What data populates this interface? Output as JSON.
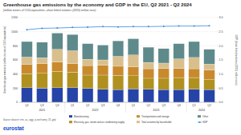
{
  "chart_data": {
    "type": "bar",
    "stacked": true,
    "title": "Greenhouse gas emissions by the economy and GDP in the EU, Q2 2021 - Q2 2024",
    "subtitle": "(million tonnes of CO2-equivalents, chain linked volumes (2015) million euro)",
    "y_label": "Greenhouse gas emissions (million tonnes of CO2-equivalents)",
    "y2_label": "GDP (chain linked volumes (2015) million euro)",
    "categories": [
      "Q2",
      "Q3",
      "Q4",
      "Q1",
      "Q2",
      "Q3",
      "Q4",
      "Q1",
      "Q2",
      "Q3",
      "Q4",
      "Q1",
      "Q2"
    ],
    "category_groups": [
      {
        "label": "2021",
        "count": 3
      },
      {
        "label": "2022",
        "count": 4
      },
      {
        "label": "2023",
        "count": 4
      },
      {
        "label": "2024",
        "count": 2
      }
    ],
    "series": [
      {
        "name": "Manufacturing",
        "color": "#2644A7",
        "type": "bar",
        "values": [
          205,
          200,
          205,
          205,
          195,
          185,
          180,
          190,
          185,
          180,
          180,
          185,
          180
        ]
      },
      {
        "name": "Electricity, gas, steam and air conditioning supply",
        "color": "#B09120",
        "type": "bar",
        "values": [
          200,
          210,
          230,
          220,
          190,
          200,
          200,
          185,
          155,
          160,
          170,
          165,
          140
        ]
      },
      {
        "name": "Transportation and storage",
        "color": "#C98A2E",
        "type": "bar",
        "values": [
          130,
          140,
          135,
          125,
          135,
          140,
          130,
          125,
          135,
          140,
          130,
          125,
          135
        ]
      },
      {
        "name": "Total activities by households",
        "color": "#D9BF8C",
        "type": "bar",
        "values": [
          105,
          80,
          180,
          180,
          90,
          75,
          140,
          170,
          90,
          75,
          135,
          160,
          85
        ]
      },
      {
        "name": "Other",
        "color": "#5F8A8B",
        "type": "bar",
        "values": [
          220,
          220,
          230,
          230,
          220,
          210,
          220,
          230,
          215,
          205,
          215,
          225,
          210
        ]
      },
      {
        "name": "GDP",
        "color": "#388AE2",
        "type": "line",
        "axis": "y2",
        "marker": "circle",
        "values": [
          2.57,
          2.62,
          2.63,
          2.65,
          2.66,
          2.68,
          2.67,
          2.68,
          2.68,
          2.69,
          2.7,
          2.7,
          2.71
        ]
      }
    ],
    "ylim": [
      0,
      1200
    ],
    "yticks": [
      0,
      200,
      400,
      600,
      800,
      1000,
      1200
    ],
    "y2lim": [
      0,
      3
    ],
    "y2ticks": [
      {
        "value": 0,
        "label": "0.0"
      },
      0.5,
      {
        "value": 1,
        "label": "1.0"
      },
      1.5,
      {
        "value": 2,
        "label": "2.0"
      },
      2.5,
      {
        "value": 3,
        "label": "3.0"
      }
    ],
    "grid": true,
    "legend": "bottom",
    "source": "Source dataset: env_ac_aigg_q and namq_10_gdp",
    "logo": "eurostat"
  }
}
